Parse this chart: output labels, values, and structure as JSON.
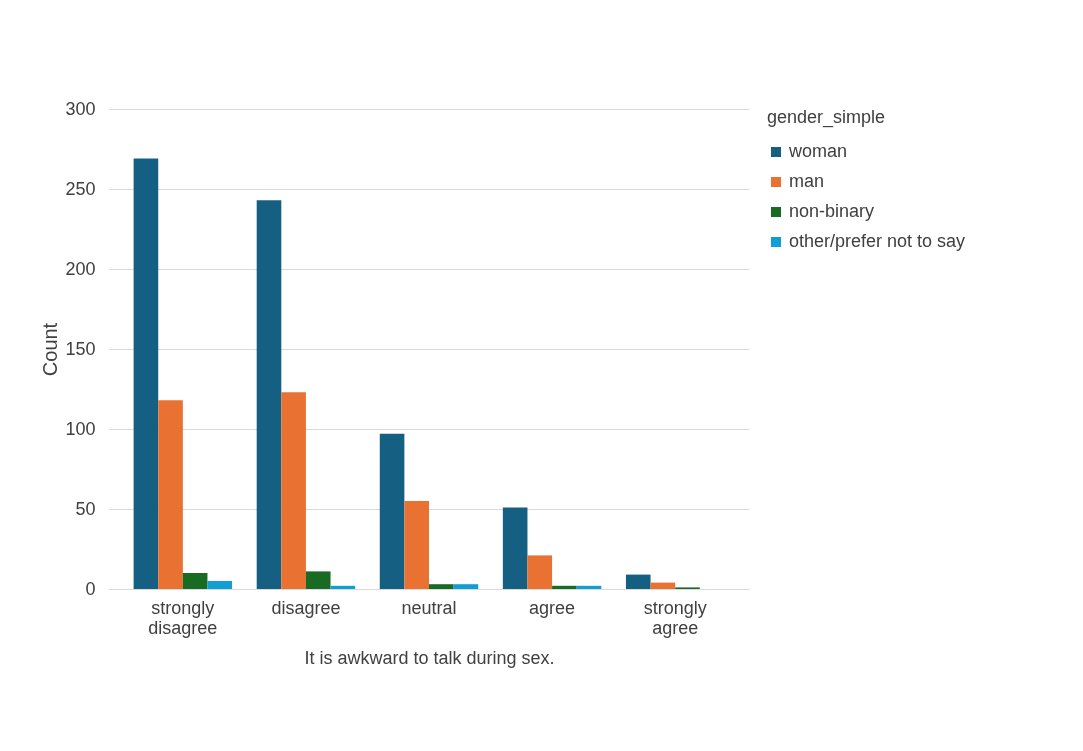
{
  "chart_data": {
    "type": "bar",
    "xlabel": "It is awkward to talk during sex.",
    "ylabel": "Count",
    "legend_title": "gender_simple",
    "categories": [
      "strongly disagree",
      "disagree",
      "neutral",
      "agree",
      "strongly agree"
    ],
    "series": [
      {
        "name": "woman",
        "color": "#156082",
        "values": [
          269,
          243,
          97,
          51,
          9
        ]
      },
      {
        "name": "man",
        "color": "#e97132",
        "values": [
          118,
          123,
          55,
          21,
          4
        ]
      },
      {
        "name": "non-binary",
        "color": "#196b24",
        "values": [
          10,
          11,
          3,
          2,
          1
        ]
      },
      {
        "name": "other/prefer not to say",
        "color": "#0f9ed5",
        "values": [
          5,
          2,
          3,
          2,
          null
        ]
      }
    ],
    "ylim": [
      0,
      300
    ],
    "yticks": [
      0,
      50,
      100,
      150,
      200,
      250,
      300
    ],
    "grid": "y",
    "legend": "right"
  }
}
